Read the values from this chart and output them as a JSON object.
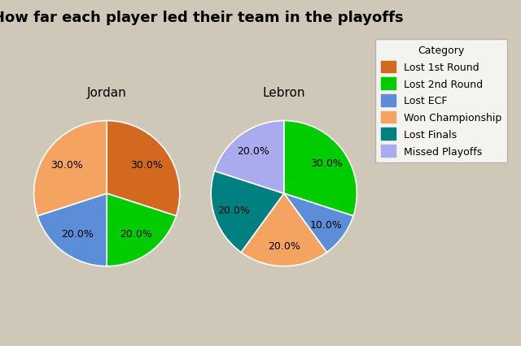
{
  "title": "How far each player led their team in the playoffs",
  "background_color": "#cfc8b8",
  "jordan_label": "Jordan",
  "lebron_label": "Lebron",
  "categories": [
    "Lost 1st Round",
    "Lost 2nd Round",
    "Lost ECF",
    "Won Championship",
    "Lost Finals",
    "Missed Playoffs"
  ],
  "colors": {
    "Lost 1st Round": "#d2691e",
    "Lost 2nd Round": "#00cc00",
    "Lost ECF": "#5b8dd9",
    "Won Championship": "#f4a460",
    "Lost Finals": "#008080",
    "Missed Playoffs": "#aaaaee"
  },
  "jordan_slices": [
    {
      "category": "Lost 1st Round",
      "pct": 30.0
    },
    {
      "category": "Lost 2nd Round",
      "pct": 20.0
    },
    {
      "category": "Lost ECF",
      "pct": 20.0
    },
    {
      "category": "Won Championship",
      "pct": 30.0
    }
  ],
  "jordan_startangle": 90,
  "lebron_slices": [
    {
      "category": "Lost 2nd Round",
      "pct": 30.0
    },
    {
      "category": "Lost ECF",
      "pct": 10.0
    },
    {
      "category": "Won Championship",
      "pct": 20.0
    },
    {
      "category": "Lost Finals",
      "pct": 20.0
    },
    {
      "category": "Missed Playoffs",
      "pct": 20.0
    }
  ],
  "lebron_startangle": 90,
  "title_fontsize": 13,
  "label_fontsize": 9,
  "subtitle_fontsize": 11,
  "legend_fontsize": 9
}
